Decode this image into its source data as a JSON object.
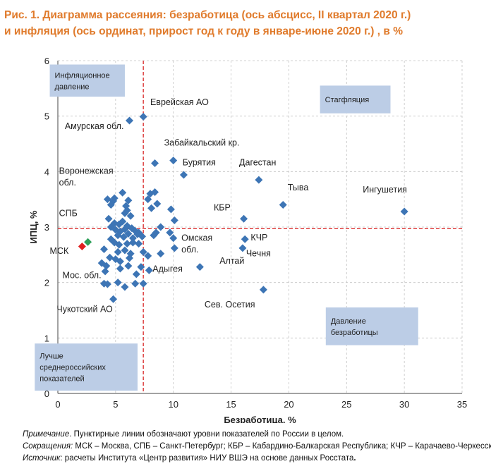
{
  "title_lines": [
    "Рис. 1. Диаграмма рассеяния: безработица (ось абсцисс, II квартал 2020 г.)",
    "и инфляция (ось ординат, прирост год к году в январе-июне 2020 г.) , в %"
  ],
  "chart_data": {
    "type": "scatter",
    "xlabel": "Безработица, %",
    "ylabel": "ИПЦ, %",
    "xlim": [
      0,
      35
    ],
    "ylim": [
      0,
      6
    ],
    "xticks": [
      0,
      5,
      10,
      15,
      20,
      25,
      30,
      35
    ],
    "yticks": [
      0,
      1,
      2,
      3,
      4,
      5,
      6
    ],
    "grid": "dashed",
    "colors": {
      "points": "#3d75b5",
      "msk": "#e02020",
      "spb": "#2ea05a",
      "ref_lines": "#d92424",
      "boxes": "#bccde6"
    },
    "reference_lines": {
      "x": 7.4,
      "y": 2.97
    },
    "points": [
      {
        "x": 6.2,
        "y": 4.92
      },
      {
        "x": 7.4,
        "y": 4.99
      },
      {
        "x": 8.4,
        "y": 4.15
      },
      {
        "x": 10.0,
        "y": 4.2
      },
      {
        "x": 10.9,
        "y": 3.94
      },
      {
        "x": 17.4,
        "y": 3.85
      },
      {
        "x": 19.5,
        "y": 3.4
      },
      {
        "x": 30.0,
        "y": 3.28
      },
      {
        "x": 16.1,
        "y": 3.15
      },
      {
        "x": 5.6,
        "y": 3.62
      },
      {
        "x": 4.3,
        "y": 3.5
      },
      {
        "x": 4.8,
        "y": 3.47
      },
      {
        "x": 4.6,
        "y": 3.4
      },
      {
        "x": 4.9,
        "y": 3.52
      },
      {
        "x": 5.9,
        "y": 3.38
      },
      {
        "x": 6.1,
        "y": 3.48
      },
      {
        "x": 5.8,
        "y": 3.25
      },
      {
        "x": 6.3,
        "y": 3.2
      },
      {
        "x": 6.0,
        "y": 3.3
      },
      {
        "x": 8.0,
        "y": 3.6
      },
      {
        "x": 8.4,
        "y": 3.63
      },
      {
        "x": 7.8,
        "y": 3.5
      },
      {
        "x": 8.6,
        "y": 3.42
      },
      {
        "x": 8.1,
        "y": 3.34
      },
      {
        "x": 9.8,
        "y": 3.32
      },
      {
        "x": 10.1,
        "y": 3.12
      },
      {
        "x": 4.4,
        "y": 3.15
      },
      {
        "x": 4.6,
        "y": 3.0
      },
      {
        "x": 4.9,
        "y": 3.07
      },
      {
        "x": 5.3,
        "y": 3.05
      },
      {
        "x": 5.6,
        "y": 3.1
      },
      {
        "x": 5.0,
        "y": 2.95
      },
      {
        "x": 5.4,
        "y": 2.92
      },
      {
        "x": 5.8,
        "y": 2.96
      },
      {
        "x": 6.0,
        "y": 3.02
      },
      {
        "x": 6.4,
        "y": 2.98
      },
      {
        "x": 6.7,
        "y": 2.93
      },
      {
        "x": 7.0,
        "y": 2.9
      },
      {
        "x": 5.2,
        "y": 2.85
      },
      {
        "x": 5.7,
        "y": 2.82
      },
      {
        "x": 6.1,
        "y": 2.88
      },
      {
        "x": 6.5,
        "y": 2.8
      },
      {
        "x": 6.9,
        "y": 2.87
      },
      {
        "x": 7.3,
        "y": 2.83
      },
      {
        "x": 8.5,
        "y": 2.9
      },
      {
        "x": 8.9,
        "y": 3.0
      },
      {
        "x": 9.7,
        "y": 2.9
      },
      {
        "x": 8.3,
        "y": 2.85
      },
      {
        "x": 4.6,
        "y": 2.78
      },
      {
        "x": 4.9,
        "y": 2.72
      },
      {
        "x": 5.3,
        "y": 2.68
      },
      {
        "x": 6.0,
        "y": 2.7
      },
      {
        "x": 6.5,
        "y": 2.72
      },
      {
        "x": 7.0,
        "y": 2.7
      },
      {
        "x": 4.0,
        "y": 2.6
      },
      {
        "x": 5.2,
        "y": 2.55
      },
      {
        "x": 5.8,
        "y": 2.58
      },
      {
        "x": 6.3,
        "y": 2.52
      },
      {
        "x": 7.4,
        "y": 2.55
      },
      {
        "x": 4.5,
        "y": 2.45
      },
      {
        "x": 5.0,
        "y": 2.42
      },
      {
        "x": 5.4,
        "y": 2.38
      },
      {
        "x": 6.2,
        "y": 2.44
      },
      {
        "x": 7.8,
        "y": 2.48
      },
      {
        "x": 8.9,
        "y": 2.52
      },
      {
        "x": 10.1,
        "y": 2.62
      },
      {
        "x": 10.0,
        "y": 2.8
      },
      {
        "x": 4.2,
        "y": 2.3
      },
      {
        "x": 5.4,
        "y": 2.25
      },
      {
        "x": 6.1,
        "y": 2.3
      },
      {
        "x": 7.2,
        "y": 2.28
      },
      {
        "x": 4.1,
        "y": 2.2
      },
      {
        "x": 6.8,
        "y": 2.15
      },
      {
        "x": 7.9,
        "y": 2.22
      },
      {
        "x": 12.3,
        "y": 2.28
      },
      {
        "x": 16.0,
        "y": 2.62
      },
      {
        "x": 16.2,
        "y": 2.78
      },
      {
        "x": 4.0,
        "y": 1.98
      },
      {
        "x": 4.3,
        "y": 1.97
      },
      {
        "x": 5.2,
        "y": 2.0
      },
      {
        "x": 5.8,
        "y": 1.92
      },
      {
        "x": 6.7,
        "y": 1.98
      },
      {
        "x": 7.4,
        "y": 1.98
      },
      {
        "x": 4.8,
        "y": 1.7
      },
      {
        "x": 17.8,
        "y": 1.87
      },
      {
        "x": 3.8,
        "y": 2.35
      }
    ],
    "highlight_points": [
      {
        "label": "МСК",
        "x": 2.1,
        "y": 2.65,
        "color": "msk"
      },
      {
        "label": "СПБ",
        "x": 2.6,
        "y": 2.73,
        "color": "spb"
      }
    ],
    "annotations": [
      {
        "text": "Еврейская АО",
        "x": 8.0,
        "y": 5.2
      },
      {
        "text": "Амурская обл.",
        "x": 0.6,
        "y": 4.77
      },
      {
        "text": "Забайкальский кр.",
        "x": 9.2,
        "y": 4.47
      },
      {
        "text": "Бурятия",
        "x": 10.8,
        "y": 4.11
      },
      {
        "text": "Дагестан",
        "x": 15.7,
        "y": 4.11
      },
      {
        "text": "Тыва",
        "x": 19.9,
        "y": 3.66
      },
      {
        "text": "Ингушетия",
        "x": 26.4,
        "y": 3.62
      },
      {
        "text": "КБР",
        "x": 13.5,
        "y": 3.3
      },
      {
        "text": "Воронежская",
        "x": 0.1,
        "y": 3.96
      },
      {
        "text": "обл.",
        "x": 0.1,
        "y": 3.75
      },
      {
        "text": "СПБ",
        "x": 0.1,
        "y": 3.2
      },
      {
        "text": "МСК",
        "x": -0.7,
        "y": 2.52
      },
      {
        "text": "Омская",
        "x": 10.7,
        "y": 2.75
      },
      {
        "text": "обл.",
        "x": 10.7,
        "y": 2.54
      },
      {
        "text": "КЧР",
        "x": 16.7,
        "y": 2.76
      },
      {
        "text": "Чечня",
        "x": 16.3,
        "y": 2.47
      },
      {
        "text": "Алтай",
        "x": 14.0,
        "y": 2.34
      },
      {
        "text": "Адыгея",
        "x": 8.2,
        "y": 2.19
      },
      {
        "text": "Мос. обл.",
        "x": 0.4,
        "y": 2.08
      },
      {
        "text": "Сев. Осетия",
        "x": 12.7,
        "y": 1.55
      },
      {
        "text": "Чукотский АО",
        "x": -0.1,
        "y": 1.47
      }
    ],
    "region_boxes": [
      {
        "lines": [
          "Инфляционное",
          "давление"
        ],
        "x0": -0.7,
        "x1": 5.8,
        "y0": 5.35,
        "y1": 5.93
      },
      {
        "lines": [
          "Стагфляция"
        ],
        "x0": 22.7,
        "x1": 28.8,
        "y0": 5.05,
        "y1": 5.55
      },
      {
        "lines": [
          "Давление",
          "безработицы"
        ],
        "x0": 23.2,
        "x1": 31.2,
        "y0": 0.87,
        "y1": 1.55
      },
      {
        "lines": [
          "Лучше",
          "среднероссийских",
          "показателей"
        ],
        "x0": -2.0,
        "x1": 6.9,
        "y0": 0.05,
        "y1": 0.9
      }
    ]
  },
  "notes": {
    "note_label": "Примечание",
    "note_text": ". Пунктирные линии обозначают уровни показателей по России в целом.",
    "abbr_label": "Сокращения:",
    "abbr_text": " МСК – Москва, СПБ – Санкт-Петербург; КБР – Кабардино-Балкарская Республика; КЧР – Карачаево-Черкесская Республика.",
    "source_label": "Источник",
    "source_text": ": расчеты Института «Центр развития» НИУ ВШЭ на основе данных Росстата",
    "source_end": "."
  }
}
